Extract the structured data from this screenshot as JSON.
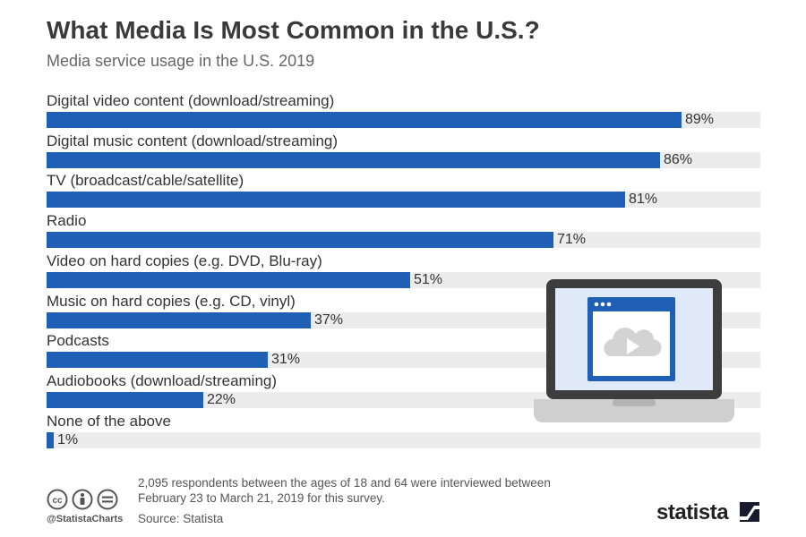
{
  "header": {
    "title": "What Media Is Most Common in the U.S.?",
    "subtitle": "Media service usage in the U.S. 2019"
  },
  "chart_data": {
    "type": "bar",
    "orientation": "horizontal",
    "categories": [
      "Digital video content (download/streaming)",
      "Digital music content (download/streaming)",
      "TV (broadcast/cable/satellite)",
      "Radio",
      "Video on hard copies (e.g. DVD, Blu-ray)",
      "Music on hard copies (e.g. CD, vinyl)",
      "Podcasts",
      "Audiobooks (download/streaming)",
      "None of the above"
    ],
    "values": [
      89,
      86,
      81,
      71,
      51,
      37,
      31,
      22,
      1
    ],
    "value_suffix": "%",
    "xlim": [
      0,
      100
    ],
    "grid": false,
    "legend": "none",
    "bar_color": "#1f5fb6",
    "track_color": "#ececec"
  },
  "footer": {
    "note": "2,095 respondents between the ages of 18 and 64 were interviewed between February 23 to March 21, 2019 for this survey.",
    "source": "Source: Statista",
    "handle": "@StatistaCharts",
    "brand": "statista",
    "license_icons": [
      "cc-icon",
      "attribution-icon",
      "no-derivatives-icon"
    ]
  },
  "illustration": {
    "icon": "laptop-cloud-video-icon"
  }
}
